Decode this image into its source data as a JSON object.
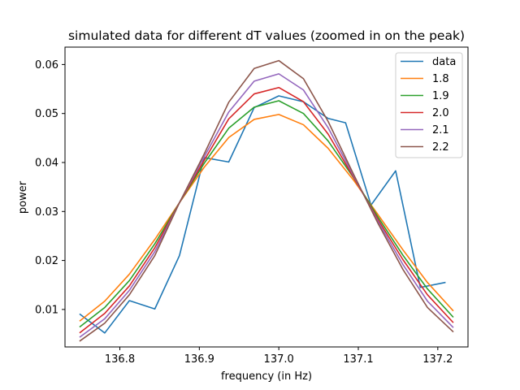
{
  "chart_data": {
    "type": "line",
    "title": "simulated data for different dT values (zoomed in on the peak)",
    "xlabel": "frequency (in Hz)",
    "ylabel": "power",
    "xlim": [
      136.731,
      137.238
    ],
    "ylim": [
      0.00235,
      0.06355
    ],
    "xticks": [
      136.8,
      136.9,
      137.0,
      137.1,
      137.2
    ],
    "xtick_labels": [
      "136.8",
      "136.9",
      "137.0",
      "137.1",
      "137.2"
    ],
    "yticks": [
      0.01,
      0.02,
      0.03,
      0.04,
      0.05,
      0.06
    ],
    "ytick_labels": [
      "0.01",
      "0.02",
      "0.03",
      "0.04",
      "0.05",
      "0.06"
    ],
    "legend_position": "upper right",
    "grid": false,
    "series": [
      {
        "name": "data",
        "color": "#1f77b4",
        "x": [
          136.75,
          136.781,
          136.812,
          136.844,
          136.875,
          136.906,
          136.937,
          136.969,
          137.0,
          137.031,
          137.062,
          137.084,
          137.116,
          137.147,
          137.178,
          137.209
        ],
        "y": [
          0.009,
          0.0052,
          0.0118,
          0.0101,
          0.021,
          0.041,
          0.0401,
          0.0512,
          0.0536,
          0.0524,
          0.049,
          0.0481,
          0.0313,
          0.0383,
          0.0145,
          0.0155
        ]
      },
      {
        "name": "1.8",
        "color": "#ff7f0e",
        "x": [
          136.75,
          136.781,
          136.812,
          136.844,
          136.875,
          136.906,
          136.937,
          136.969,
          137.0,
          137.031,
          137.062,
          137.094,
          137.125,
          137.156,
          137.187,
          137.219
        ],
        "y": [
          0.0077,
          0.0117,
          0.0172,
          0.0243,
          0.0318,
          0.039,
          0.0451,
          0.0488,
          0.0498,
          0.0477,
          0.0429,
          0.0364,
          0.0293,
          0.0222,
          0.0155,
          0.0098
        ]
      },
      {
        "name": "1.9",
        "color": "#2ca02c",
        "x": [
          136.75,
          136.781,
          136.812,
          136.844,
          136.875,
          136.906,
          136.937,
          136.969,
          137.0,
          137.031,
          137.062,
          137.094,
          137.125,
          137.156,
          137.187,
          137.219
        ],
        "y": [
          0.0065,
          0.0104,
          0.0159,
          0.0234,
          0.0318,
          0.0398,
          0.047,
          0.0513,
          0.0526,
          0.05,
          0.0444,
          0.0369,
          0.0288,
          0.0211,
          0.0142,
          0.0085
        ]
      },
      {
        "name": "2.0",
        "color": "#d62728",
        "x": [
          136.75,
          136.781,
          136.812,
          136.844,
          136.875,
          136.906,
          136.937,
          136.969,
          137.0,
          137.031,
          137.062,
          137.094,
          137.125,
          137.156,
          137.187,
          137.219
        ],
        "y": [
          0.0053,
          0.0092,
          0.0148,
          0.0226,
          0.0318,
          0.0404,
          0.0489,
          0.054,
          0.0553,
          0.0524,
          0.0458,
          0.037,
          0.0283,
          0.0202,
          0.013,
          0.0074
        ]
      },
      {
        "name": "2.1",
        "color": "#9467bd",
        "x": [
          136.75,
          136.781,
          136.812,
          136.844,
          136.875,
          136.906,
          136.937,
          136.969,
          137.0,
          137.031,
          137.062,
          137.094,
          137.125,
          137.156,
          137.187,
          137.219
        ],
        "y": [
          0.0044,
          0.0081,
          0.0139,
          0.0218,
          0.0318,
          0.0411,
          0.0503,
          0.0566,
          0.0581,
          0.0548,
          0.0471,
          0.0373,
          0.0279,
          0.0192,
          0.0117,
          0.0064
        ]
      },
      {
        "name": "2.2",
        "color": "#8c564b",
        "x": [
          136.75,
          136.781,
          136.812,
          136.844,
          136.875,
          136.906,
          136.937,
          136.969,
          137.0,
          137.031,
          137.062,
          137.094,
          137.125,
          137.156,
          137.187,
          137.219
        ],
        "y": [
          0.0036,
          0.0072,
          0.013,
          0.021,
          0.0318,
          0.0417,
          0.0523,
          0.0592,
          0.0608,
          0.0571,
          0.0484,
          0.0376,
          0.0275,
          0.0182,
          0.0104,
          0.0055
        ]
      }
    ]
  }
}
